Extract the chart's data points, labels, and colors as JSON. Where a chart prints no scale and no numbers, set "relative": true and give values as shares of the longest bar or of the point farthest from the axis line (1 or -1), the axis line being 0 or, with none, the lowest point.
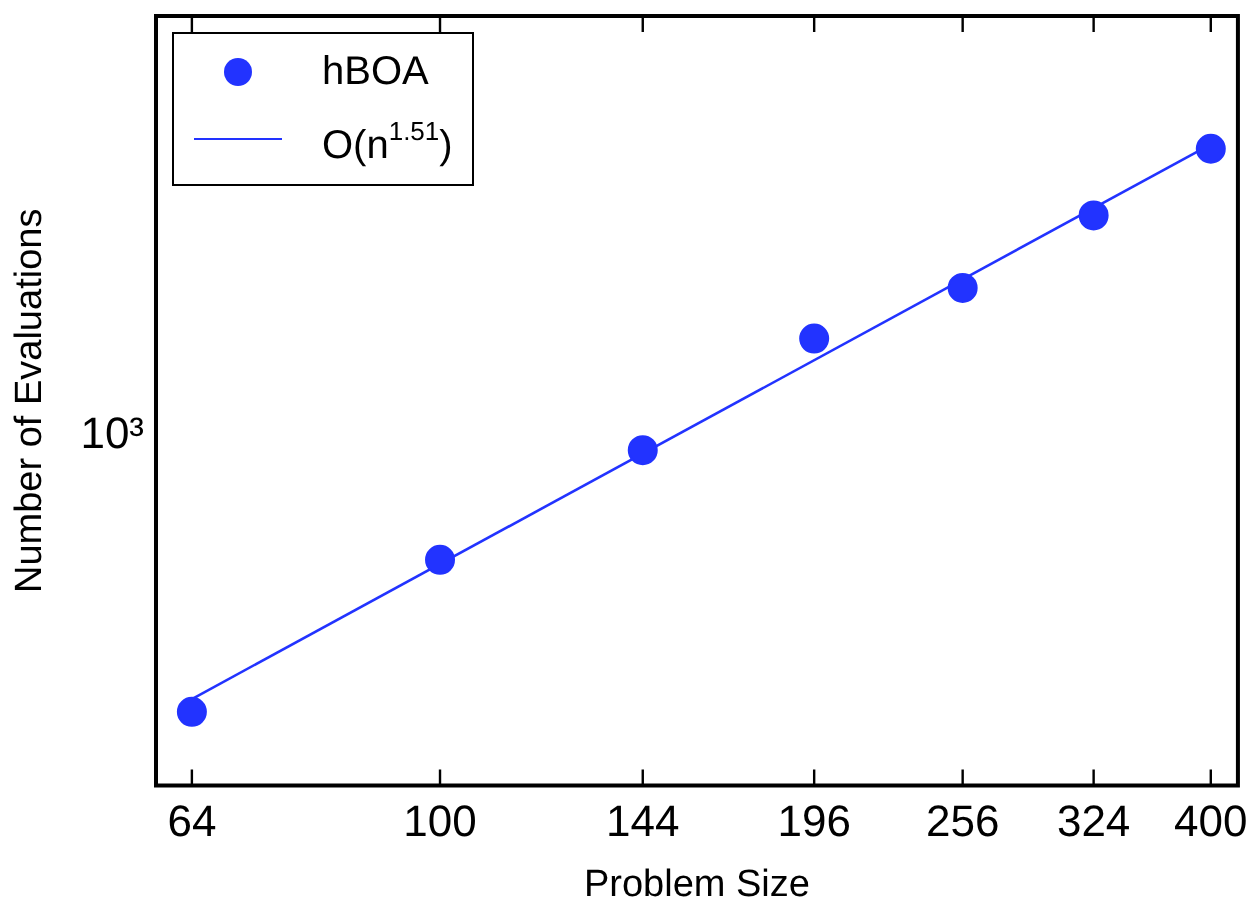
{
  "chart_data": {
    "type": "scatter",
    "xlabel": "Problem Size",
    "ylabel": "Number of Evaluations",
    "log": "x",
    "relative": true,
    "xlim": [
      60,
      420
    ],
    "xticks": [
      64,
      100,
      144,
      196,
      256,
      324,
      400
    ],
    "annotations": [
      "10³"
    ],
    "x": [
      64,
      100,
      144,
      196,
      256,
      324,
      400
    ],
    "legend": "top left",
    "grid": false,
    "series": [
      {
        "name": "hBOA",
        "marker": "circle",
        "color": "#2233ff",
        "values": [
          0.115,
          0.352,
          0.523,
          0.697,
          0.776,
          0.889,
          0.993
        ]
      },
      {
        "name": "O(n$^{1.51}$)",
        "type": "line",
        "marker": "none",
        "line_style": "solid",
        "color": "#2233ff",
        "x": [
          64,
          400
        ],
        "values": [
          0.135,
          1
        ]
      }
    ]
  }
}
